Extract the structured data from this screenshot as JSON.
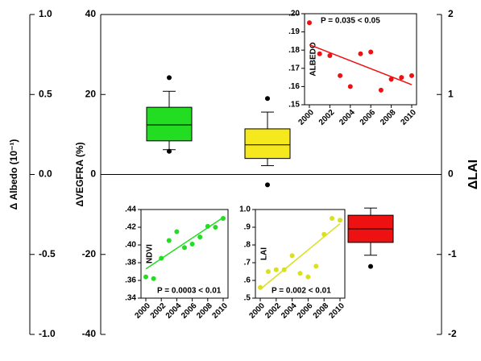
{
  "chart_data": [
    {
      "type": "box",
      "ylabel": "ΔVEGFRA (%)",
      "ylim": [
        -40,
        40
      ],
      "yticks": [
        -40,
        -20,
        0,
        20,
        40
      ],
      "y0label": "Δ Albedo (10⁻¹)",
      "y0lim": [
        -1,
        1
      ],
      "y0ticks": [
        {
          "value": -1,
          "label": "-1.0"
        },
        {
          "value": -0.5,
          "label": "-0.5"
        },
        {
          "value": 0,
          "label": "0.0"
        },
        {
          "value": 0.5,
          "label": "0.5"
        },
        {
          "value": 1,
          "label": "1.0"
        }
      ],
      "y2label": "ΔLAI",
      "y2lim": [
        -2,
        2
      ],
      "y2ticks": [
        -2,
        -1,
        0,
        1,
        2
      ],
      "categories": [
        null,
        null,
        null
      ],
      "series": [
        {
          "color": "#22dd22",
          "q1": 8.4,
          "median": 12.4,
          "q3": 16.8,
          "whisker_low": 6.2,
          "whisker_high": 20.8,
          "outliers": [
            24.2,
            5.8
          ]
        },
        {
          "color": "#f5e81c",
          "q1": 4,
          "median": 7.4,
          "q3": 11.4,
          "whisker_low": 2.2,
          "whisker_high": 15.6,
          "outliers": [
            19,
            -2.6
          ]
        },
        {
          "color": "#ee1111",
          "q1": -17,
          "median": -13.6,
          "q3": -10.2,
          "whisker_low": -20.2,
          "whisker_high": -8.4,
          "outliers": [
            -23
          ]
        }
      ]
    },
    {
      "type": "scatter",
      "ylabel": "ALBEDO",
      "annotation": "P = 0.035 < 0.05",
      "annotation_pos": "top",
      "color": "#ee1111",
      "x": [
        2000,
        2001,
        2002,
        2003,
        2004,
        2005,
        2006,
        2007,
        2008,
        2009,
        2010
      ],
      "values": [
        0.195,
        0.178,
        0.177,
        0.166,
        0.16,
        0.178,
        0.179,
        0.158,
        0.164,
        0.165,
        0.166
      ],
      "trend": {
        "x": [
          2000,
          2010
        ],
        "values": [
          0.183,
          0.161
        ]
      },
      "xlim": [
        2000,
        2010
      ],
      "xticks": [
        2000,
        2002,
        2004,
        2006,
        2008,
        2010
      ],
      "ylim": [
        0.15,
        0.2
      ],
      "yticks": [
        {
          "value": 0.15,
          "label": ".15"
        },
        {
          "value": 0.16,
          "label": ".16"
        },
        {
          "value": 0.17,
          "label": ".17"
        },
        {
          "value": 0.18,
          "label": ".18"
        },
        {
          "value": 0.19,
          "label": ".19"
        },
        {
          "value": 0.2,
          "label": ".20"
        }
      ]
    },
    {
      "type": "scatter",
      "ylabel": "NDVI",
      "annotation": "P = 0.0003 < 0.01",
      "annotation_pos": "bottom",
      "color": "#22dd22",
      "x": [
        2000,
        2001,
        2002,
        2003,
        2004,
        2005,
        2006,
        2007,
        2008,
        2009,
        2010
      ],
      "values": [
        0.364,
        0.362,
        0.385,
        0.405,
        0.415,
        0.397,
        0.401,
        0.409,
        0.421,
        0.42,
        0.43
      ],
      "trend": {
        "x": [
          2000,
          2010
        ],
        "values": [
          0.373,
          0.431
        ]
      },
      "xlim": [
        2000,
        2010
      ],
      "xticks": [
        2000,
        2002,
        2004,
        2006,
        2008,
        2010
      ],
      "ylim": [
        0.34,
        0.44
      ],
      "yticks": [
        {
          "value": 0.34,
          "label": ".34"
        },
        {
          "value": 0.36,
          "label": ".36"
        },
        {
          "value": 0.38,
          "label": ".38"
        },
        {
          "value": 0.4,
          "label": ".40"
        },
        {
          "value": 0.42,
          "label": ".42"
        },
        {
          "value": 0.44,
          "label": ".44"
        }
      ]
    },
    {
      "type": "scatter",
      "ylabel": "LAI",
      "annotation": "P = 0.002 < 0.01",
      "annotation_pos": "bottom",
      "color": "#d8e020",
      "x": [
        2000,
        2001,
        2002,
        2003,
        2004,
        2005,
        2006,
        2007,
        2008,
        2009,
        2010
      ],
      "values": [
        0.56,
        0.65,
        0.66,
        0.66,
        0.74,
        0.64,
        0.62,
        0.68,
        0.86,
        0.95,
        0.94
      ],
      "trend": {
        "x": [
          2000,
          2010
        ],
        "values": [
          0.55,
          0.92
        ]
      },
      "xlim": [
        2000,
        2010
      ],
      "xticks": [
        2000,
        2002,
        2004,
        2006,
        2008,
        2010
      ],
      "ylim": [
        0.5,
        1.0
      ],
      "yticks": [
        {
          "value": 0.5,
          "label": ".5"
        },
        {
          "value": 0.6,
          "label": ".6"
        },
        {
          "value": 0.7,
          "label": ".7"
        },
        {
          "value": 0.8,
          "label": ".8"
        },
        {
          "value": 0.9,
          "label": ".9"
        },
        {
          "value": 1.0,
          "label": "1.0"
        }
      ]
    }
  ]
}
